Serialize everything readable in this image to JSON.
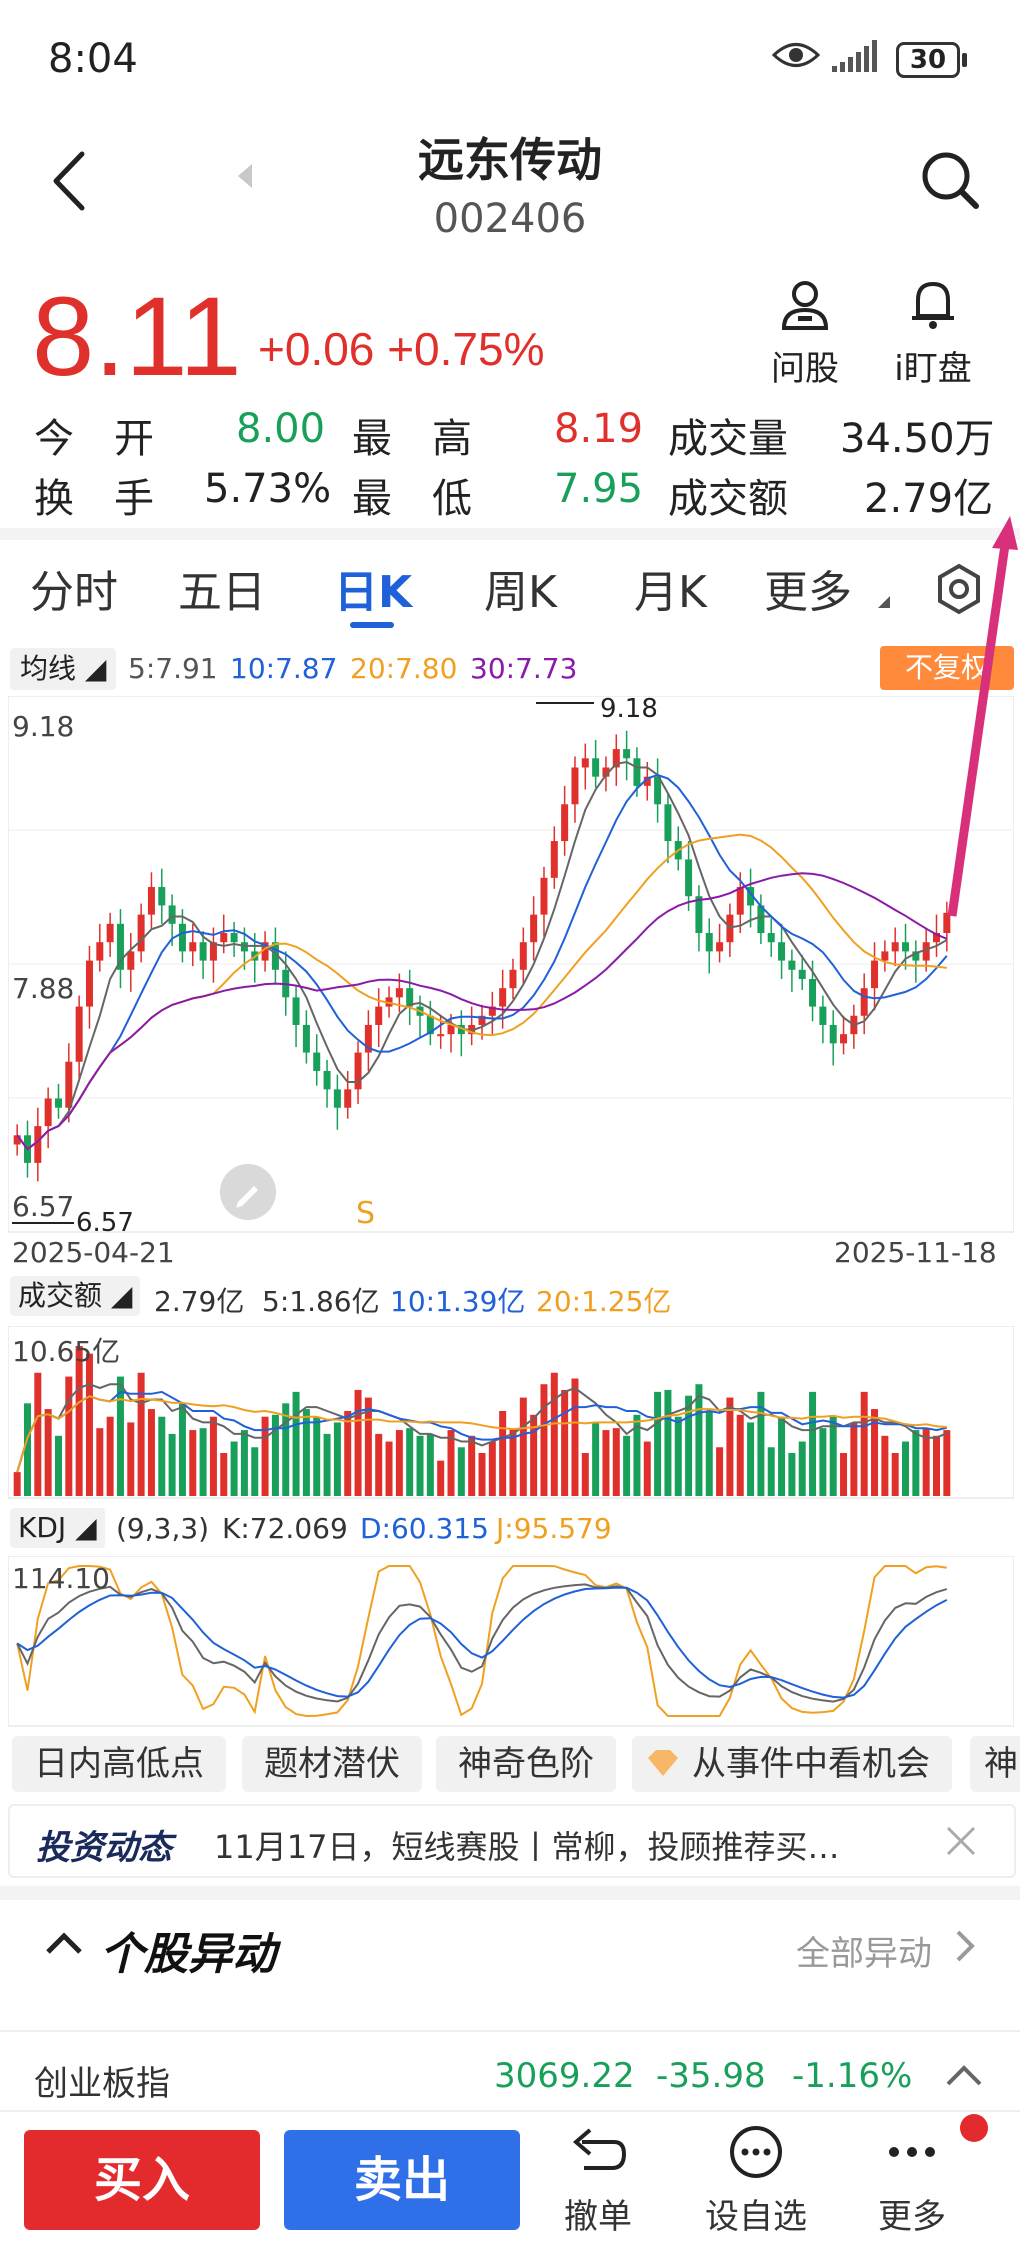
{
  "status_bar": {
    "time": "8:04",
    "battery": "30"
  },
  "header": {
    "title": "远东传动",
    "code": "002406"
  },
  "quote": {
    "price": "8.11",
    "change": "+0.06",
    "change_pct": "+0.75%"
  },
  "header_buttons": {
    "ask": "问股",
    "watch": "i盯盘"
  },
  "stats": {
    "open_label": "今　开",
    "open": "8.00",
    "high_label": "最　高",
    "high": "8.19",
    "volume_label": "成交量",
    "volume": "34.50万",
    "turnover_label": "换　手",
    "turnover": "5.73%",
    "low_label": "最　低",
    "low": "7.95",
    "amount_label": "成交额",
    "amount": "2.79亿"
  },
  "tabs": [
    "分时",
    "五日",
    "日K",
    "周K",
    "月K",
    "更多"
  ],
  "ma_legend": {
    "selector": "均线",
    "ma5": "5:7.91",
    "ma10": "10:7.87",
    "ma20": "20:7.80",
    "ma30": "30:7.73",
    "adjust": "不复权"
  },
  "colors": {
    "up": "#e0302c",
    "down": "#18a05a",
    "ma5": "#666666",
    "ma10": "#2060d8",
    "ma20": "#f0a020",
    "ma30": "#8a1aa8",
    "accent": "#2060d8",
    "arrow": "#d8307a"
  },
  "chart_data": [
    {
      "type": "candlestick",
      "title": "",
      "x_start": "2025-04-21",
      "x_end": "2025-11-18",
      "y_labels": [
        "9.18",
        "7.88",
        "6.57"
      ],
      "max_marker": "9.18",
      "min_marker": "6.57",
      "signal_marker": "S",
      "ylim": [
        6.57,
        9.18
      ],
      "closes": [
        6.9,
        6.75,
        6.95,
        7.1,
        7.05,
        7.3,
        7.6,
        7.85,
        7.95,
        8.05,
        7.8,
        7.9,
        8.1,
        8.25,
        8.15,
        8.05,
        7.9,
        7.95,
        7.85,
        7.95,
        8.0,
        7.95,
        7.9,
        7.85,
        7.95,
        7.8,
        7.65,
        7.5,
        7.35,
        7.25,
        7.15,
        7.05,
        7.15,
        7.35,
        7.5,
        7.6,
        7.65,
        7.7,
        7.6,
        7.55,
        7.45,
        7.45,
        7.5,
        7.45,
        7.5,
        7.55,
        7.6,
        7.7,
        7.8,
        7.95,
        8.1,
        8.3,
        8.5,
        8.7,
        8.9,
        8.95,
        8.85,
        8.9,
        9.0,
        8.95,
        8.8,
        8.85,
        8.7,
        8.5,
        8.4,
        8.2,
        8.0,
        7.9,
        7.95,
        8.1,
        8.25,
        8.15,
        8.0,
        7.95,
        7.85,
        7.8,
        7.75,
        7.6,
        7.5,
        7.4,
        7.45,
        7.55,
        7.7,
        7.85,
        7.9,
        7.95,
        7.9,
        7.85,
        7.95,
        8.0,
        8.11
      ],
      "ma5_last": 7.91,
      "ma10_last": 7.87,
      "ma20_last": 7.8,
      "ma30_last": 7.73
    },
    {
      "type": "bar",
      "title": "",
      "ymax_label": "10.65亿",
      "legend": {
        "selector": "成交额",
        "value": "2.79亿",
        "ma5": "5:1.86亿",
        "ma10": "10:1.39亿",
        "ma20": "20:1.25亿"
      }
    },
    {
      "type": "line",
      "title": "",
      "ymax_label": "114.10",
      "legend": {
        "selector": "KDJ",
        "params": "(9,3,3)",
        "k": "K:72.069",
        "d": "D:60.315",
        "j": "J:95.579"
      }
    }
  ],
  "feature_chips": [
    "日内高低点",
    "题材潜伏",
    "神奇色阶",
    "从事件中看机会",
    "神"
  ],
  "news": {
    "label": "投资动态",
    "text": "11月17日，短线赛股丨常柳，投顾推荐买…"
  },
  "section": {
    "title": "个股异动",
    "link": "全部异动"
  },
  "index_row": {
    "name": "创业板指",
    "value": "3069.22",
    "change": "-35.98",
    "pct": "-1.16%"
  },
  "bottom_bar": {
    "buy": "买入",
    "sell": "卖出",
    "cancel": "撤单",
    "watchlist": "设自选",
    "more": "更多"
  }
}
